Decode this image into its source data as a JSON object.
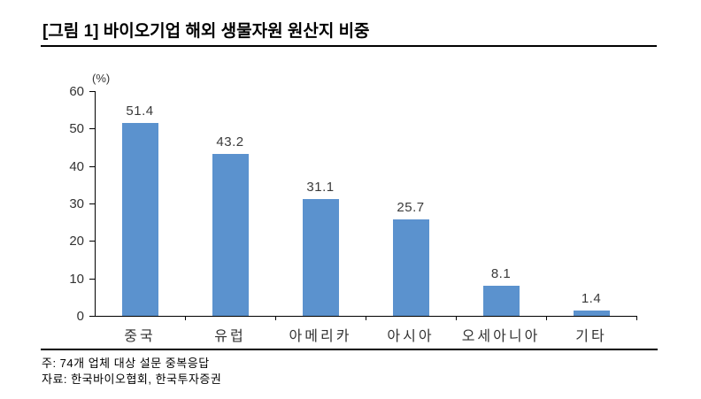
{
  "title": "[그림 1] 바이오기업 해외 생물자원 원산지 비중",
  "notes": {
    "note1": "주: 74개 업체 대상 설문 중복응답",
    "note2": "자료: 한국바이오협회, 한국투자증권"
  },
  "chart_data": {
    "type": "bar",
    "categories": [
      "중국",
      "유럽",
      "아메리카",
      "아시아",
      "오세아니아",
      "기타"
    ],
    "values": [
      51.4,
      43.2,
      31.1,
      25.7,
      8.1,
      1.4
    ],
    "title": "",
    "xlabel": "",
    "ylabel": "(%)",
    "ylim": [
      0,
      60
    ],
    "yticks": [
      0,
      10,
      20,
      30,
      40,
      50,
      60
    ],
    "bar_color": "#5b92ce",
    "grid": false,
    "legend_visible": false
  }
}
